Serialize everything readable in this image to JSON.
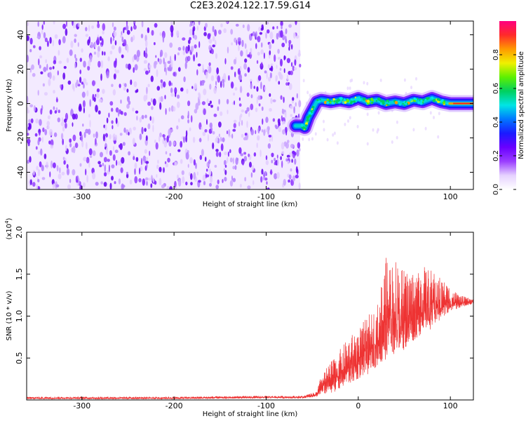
{
  "title": "C2E3.2024.122.17.59.G14",
  "chart_data": [
    {
      "type": "heatmap",
      "name": "spectrogram",
      "xlabel": "Height of straight line (km)",
      "ylabel": "Frequency (Hz)",
      "xlim": [
        -360,
        125
      ],
      "ylim": [
        -50,
        48
      ],
      "xticks": [
        -300,
        -200,
        -100,
        0,
        100
      ],
      "xtick_labels": [
        "-300",
        "-200",
        "-100",
        "0",
        "100"
      ],
      "yticks": [
        -40,
        -20,
        0,
        20,
        40
      ],
      "ytick_labels": [
        "-40",
        "-20",
        "0",
        "20",
        "40"
      ],
      "noise_region_x": [
        -360,
        -63
      ],
      "signal_track": {
        "x": [
          -68,
          -62,
          -58,
          -54,
          -50,
          -45,
          -40,
          -30,
          -20,
          -10,
          0,
          10,
          20,
          30,
          40,
          50,
          60,
          70,
          80,
          90,
          100,
          110,
          125
        ],
        "y": [
          -13,
          -13,
          -14,
          -8,
          -4,
          1,
          2,
          1,
          2,
          1,
          3,
          1,
          2,
          0,
          1,
          0,
          2,
          1,
          3,
          1,
          0,
          0,
          0
        ]
      },
      "colorbar": {
        "label": "Normalized spectral amplitude",
        "range": [
          0,
          1
        ],
        "ticks": [
          0.0,
          0.2,
          0.4,
          0.6,
          0.8
        ],
        "tick_labels": [
          "0.0",
          "0.2",
          "0.4",
          "0.6",
          "0.8"
        ],
        "colors": [
          "#ffffff",
          "#e6d2ff",
          "#9a3dff",
          "#6a00ff",
          "#1a1aff",
          "#0077ff",
          "#00e5e5",
          "#00d060",
          "#5ef000",
          "#f0f000",
          "#ff9a00",
          "#ff2a2a",
          "#ff0080"
        ]
      },
      "grid": false
    },
    {
      "type": "line",
      "name": "snr",
      "xlabel": "Height of straight line (km)",
      "ylabel": "SNR (10 * v/v)",
      "y_multiplier_label": "(x10",
      "y_multiplier_exp": "4",
      "y_multiplier_close": ")",
      "xlim": [
        -360,
        125
      ],
      "ylim": [
        0,
        2.0
      ],
      "xticks": [
        -300,
        -200,
        -100,
        0,
        100
      ],
      "xtick_labels": [
        "-300",
        "-200",
        "-100",
        "0",
        "100"
      ],
      "yticks": [
        0.5,
        1.0,
        1.5,
        2.0
      ],
      "ytick_labels": [
        "0.5",
        "1.0",
        "1.5",
        "2.0"
      ],
      "series": [
        {
          "color": "#ee3333",
          "envelope_x": [
            -360,
            -200,
            -100,
            -60,
            -45,
            -40,
            -30,
            -20,
            -10,
            0,
            10,
            20,
            30,
            40,
            50,
            60,
            70,
            80,
            90,
            100,
            110,
            125
          ],
          "envelope_low": [
            0.01,
            0.01,
            0.02,
            0.02,
            0.04,
            0.06,
            0.08,
            0.12,
            0.18,
            0.25,
            0.3,
            0.4,
            0.45,
            0.55,
            0.6,
            0.7,
            0.8,
            0.85,
            0.95,
            1.05,
            1.1,
            1.15
          ],
          "envelope_high": [
            0.04,
            0.04,
            0.05,
            0.05,
            0.1,
            0.3,
            0.45,
            0.6,
            0.75,
            0.85,
            1.0,
            1.1,
            1.7,
            1.7,
            1.55,
            1.55,
            1.6,
            1.55,
            1.45,
            1.35,
            1.25,
            1.2
          ]
        }
      ],
      "grid": false
    }
  ]
}
